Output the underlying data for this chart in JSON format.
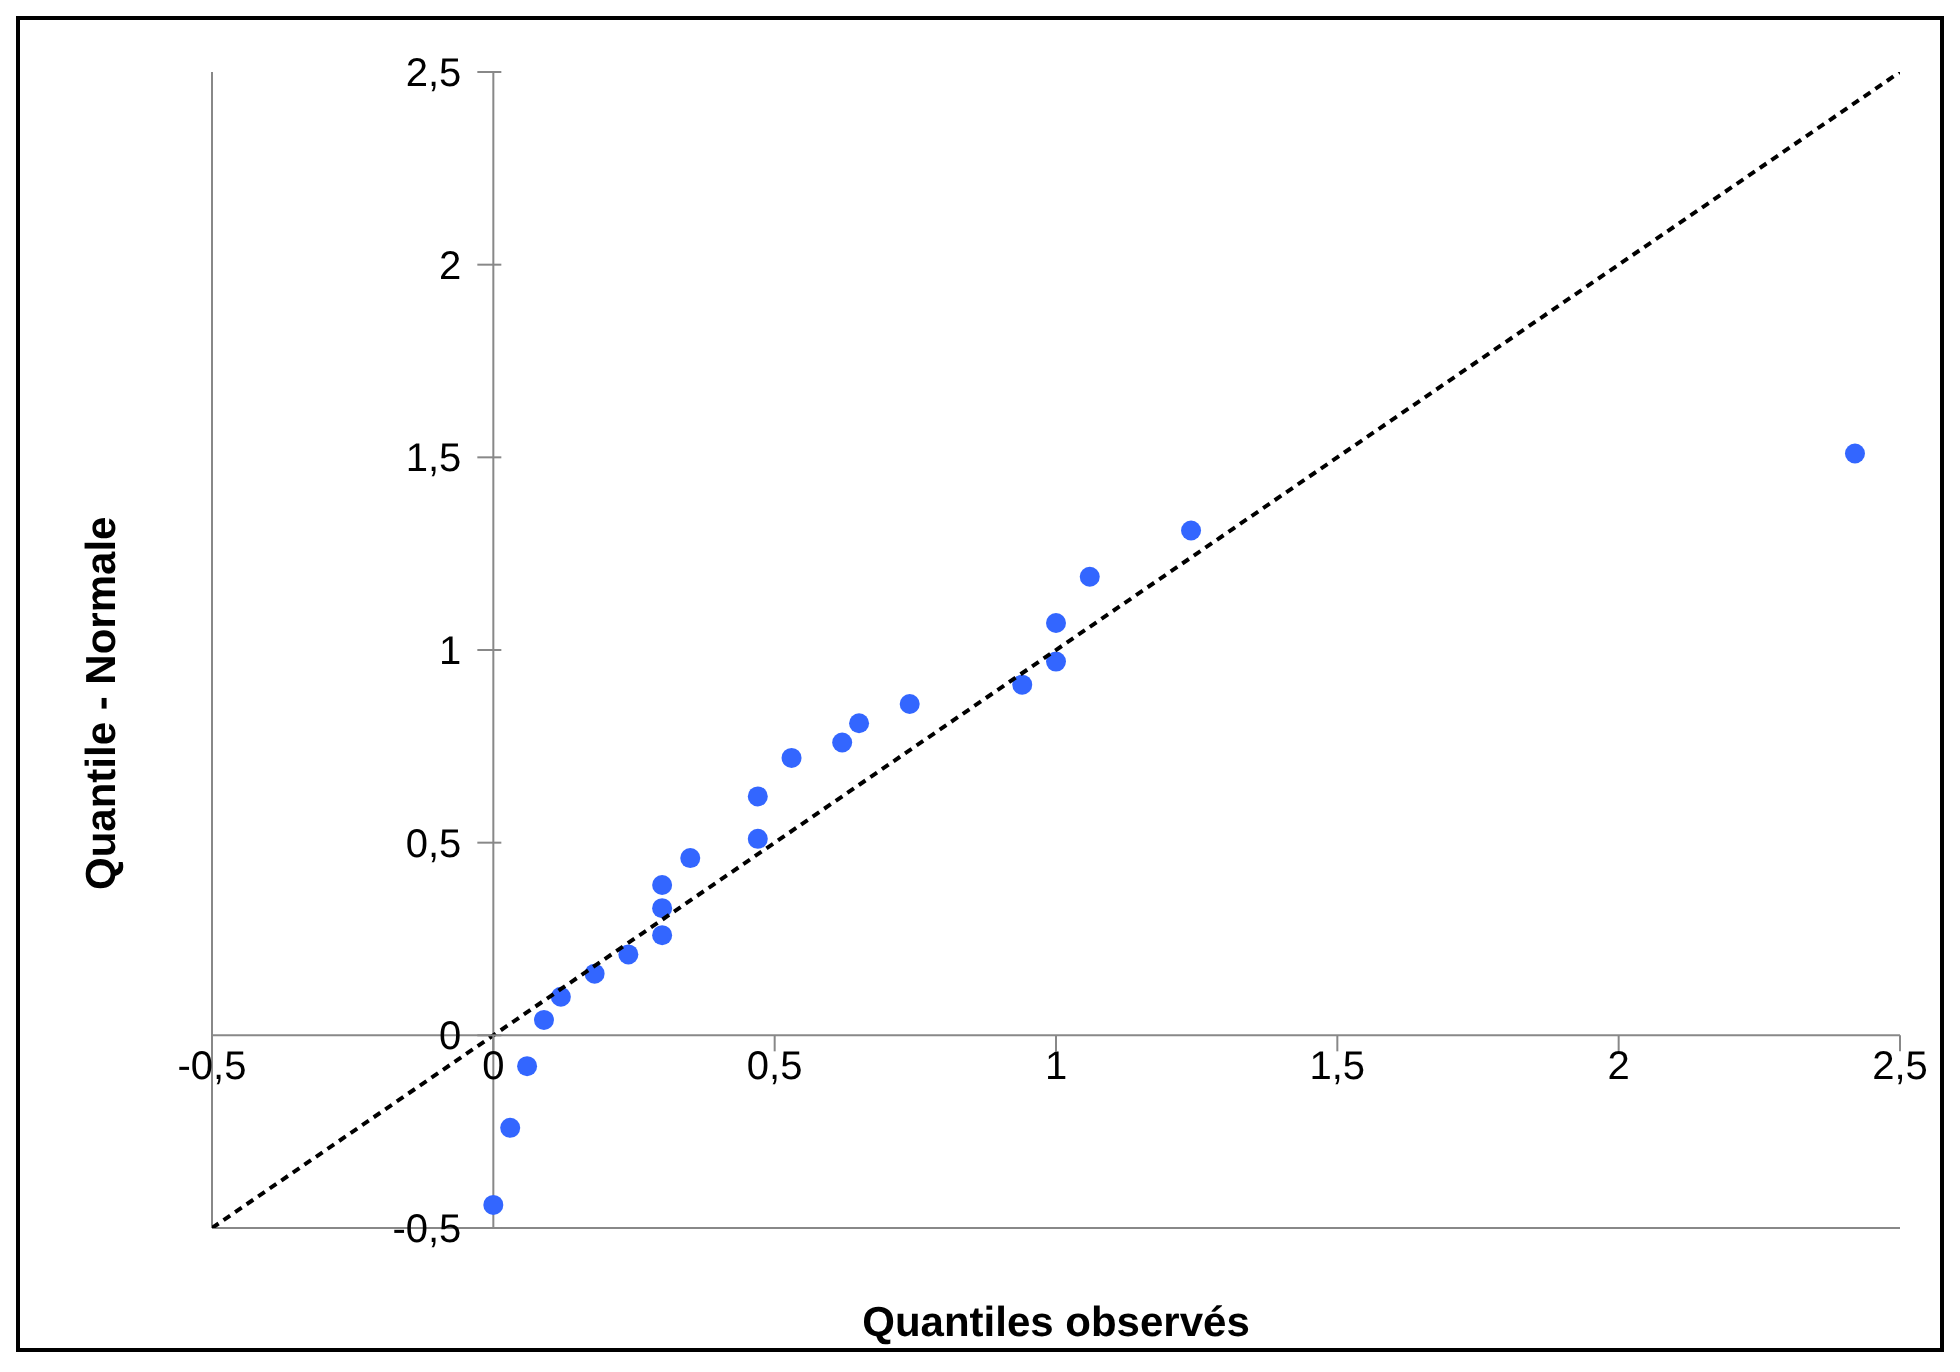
{
  "chart_data": {
    "type": "scatter",
    "xlabel": "Quantiles observés",
    "ylabel": "Quantile - Normale",
    "xlim": [
      -0.5,
      2.5
    ],
    "ylim": [
      -0.5,
      2.5
    ],
    "xticks": [
      {
        "value": -0.5,
        "label": "-0,5"
      },
      0,
      {
        "value": 0.5,
        "label": "0,5"
      },
      1,
      {
        "value": 1.5,
        "label": "1,5"
      },
      2,
      {
        "value": 2.5,
        "label": "2,5"
      }
    ],
    "yticks": [
      {
        "value": -0.5,
        "label": "-0,5"
      },
      0,
      {
        "value": 0.5,
        "label": "0,5"
      },
      1,
      {
        "value": 1.5,
        "label": "1,5"
      },
      2,
      {
        "value": 2.5,
        "label": "2,5"
      }
    ],
    "series": [
      {
        "color": "#3366ff",
        "marker": "circle",
        "x": [
          0,
          0.03,
          0.06,
          0.09,
          0.12,
          0.18,
          0.24,
          0.3,
          0.3,
          0.3,
          0.35,
          0.47,
          0.47,
          0.53,
          0.62,
          0.65,
          0.74,
          0.94,
          1.0,
          1.0,
          1.06,
          1.24,
          2.42
        ],
        "values": [
          -0.44,
          -0.24,
          -0.08,
          0.04,
          0.1,
          0.16,
          0.21,
          0.26,
          0.33,
          0.39,
          0.46,
          0.51,
          0.62,
          0.72,
          0.76,
          0.81,
          0.86,
          0.91,
          0.97,
          1.07,
          1.19,
          1.31,
          1.51
        ]
      },
      {
        "type": "line",
        "color": "#000000",
        "marker": "none",
        "line_style": "dashed",
        "x": [
          -0.5,
          2.5
        ],
        "values": [
          -0.5,
          2.5
        ]
      }
    ]
  }
}
